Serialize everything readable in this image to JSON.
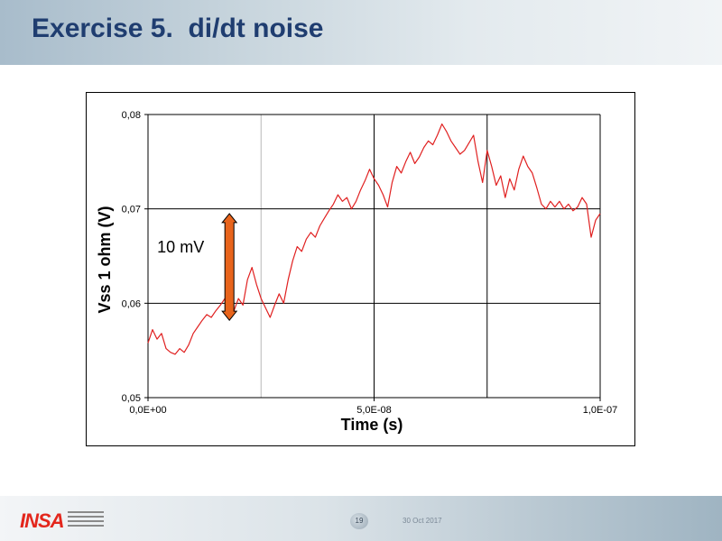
{
  "slide": {
    "title": "Exercise 5.  di/dt noise",
    "page_number": "19",
    "date": "30 Oct 2017",
    "logo_text": "INSA"
  },
  "chart_data": {
    "type": "line",
    "xlabel": "Time (s)",
    "ylabel": "Vss 1 ohm (V)",
    "xlim": [
      0,
      1e-07
    ],
    "ylim": [
      0.05,
      0.08
    ],
    "x_tick_labels": [
      "0,0E+00",
      "5,0E-08",
      "1,0E-07"
    ],
    "y_tick_labels": [
      "0,05",
      "0,06",
      "0,07",
      "0,08"
    ],
    "grid": true,
    "legend": "none",
    "line_color": "#e02020",
    "annotation": {
      "text": "10 mV",
      "arrow_from": 0.0582,
      "arrow_to": 0.0695,
      "arrow_x": 1.8e-08,
      "color": "#e8641c"
    },
    "series": [
      {
        "x": [
          0,
          1e-09,
          2e-09,
          3e-09,
          4e-09,
          5e-09,
          6e-09,
          7e-09,
          8e-09,
          9e-09,
          1e-08,
          1.1e-08,
          1.2e-08,
          1.3e-08,
          1.4e-08,
          1.5e-08,
          1.6e-08,
          1.7e-08,
          1.8e-08,
          1.9e-08,
          2e-08,
          2.1e-08,
          2.2e-08,
          2.3e-08,
          2.4e-08,
          2.5e-08,
          2.6e-08,
          2.7e-08,
          2.8e-08,
          2.9e-08,
          3e-08,
          3.1e-08,
          3.2e-08,
          3.3e-08,
          3.4e-08,
          3.5e-08,
          3.6e-08,
          3.7e-08,
          3.8e-08,
          3.9e-08,
          4e-08,
          4.1e-08,
          4.2e-08,
          4.3e-08,
          4.4e-08,
          4.5e-08,
          4.6e-08,
          4.7e-08,
          4.8e-08,
          4.9e-08,
          5e-08,
          5.1e-08,
          5.2e-08,
          5.3e-08,
          5.4e-08,
          5.5e-08,
          5.6e-08,
          5.7e-08,
          5.8e-08,
          5.9e-08,
          6e-08,
          6.1e-08,
          6.2e-08,
          6.3e-08,
          6.4e-08,
          6.5e-08,
          6.6e-08,
          6.7e-08,
          6.8e-08,
          6.9e-08,
          7e-08,
          7.1e-08,
          7.2e-08,
          7.3e-08,
          7.4e-08,
          7.5e-08,
          7.6e-08,
          7.7e-08,
          7.8e-08,
          7.9e-08,
          8e-08,
          8.1e-08,
          8.2e-08,
          8.3e-08,
          8.4e-08,
          8.5e-08,
          8.6e-08,
          8.7e-08,
          8.8e-08,
          8.9e-08,
          9e-08,
          9.1e-08,
          9.2e-08,
          9.3e-08,
          9.4e-08,
          9.5e-08,
          9.6e-08,
          9.7e-08,
          9.8e-08,
          9.9e-08,
          1e-07
        ],
        "y": [
          0.0558,
          0.0572,
          0.0562,
          0.0568,
          0.0552,
          0.0548,
          0.0546,
          0.0552,
          0.0548,
          0.0556,
          0.0568,
          0.0575,
          0.0582,
          0.0588,
          0.0585,
          0.0592,
          0.0598,
          0.0605,
          0.0598,
          0.0592,
          0.0605,
          0.0598,
          0.0625,
          0.0638,
          0.062,
          0.0605,
          0.0595,
          0.0585,
          0.0598,
          0.061,
          0.06,
          0.0625,
          0.0645,
          0.066,
          0.0655,
          0.0668,
          0.0675,
          0.067,
          0.0682,
          0.069,
          0.0698,
          0.0705,
          0.0715,
          0.0708,
          0.0712,
          0.07,
          0.0708,
          0.072,
          0.073,
          0.0742,
          0.0732,
          0.0725,
          0.0715,
          0.0702,
          0.0728,
          0.0745,
          0.0738,
          0.075,
          0.076,
          0.0748,
          0.0755,
          0.0765,
          0.0772,
          0.0768,
          0.0778,
          0.079,
          0.0782,
          0.0772,
          0.0765,
          0.0758,
          0.0762,
          0.077,
          0.0778,
          0.075,
          0.0728,
          0.0762,
          0.0745,
          0.0725,
          0.0735,
          0.0712,
          0.0732,
          0.072,
          0.0742,
          0.0756,
          0.0745,
          0.0738,
          0.0722,
          0.0705,
          0.07,
          0.0708,
          0.0702,
          0.0708,
          0.07,
          0.0705,
          0.0698,
          0.0702,
          0.0712,
          0.0705,
          0.067,
          0.0688,
          0.0695
        ]
      }
    ]
  }
}
